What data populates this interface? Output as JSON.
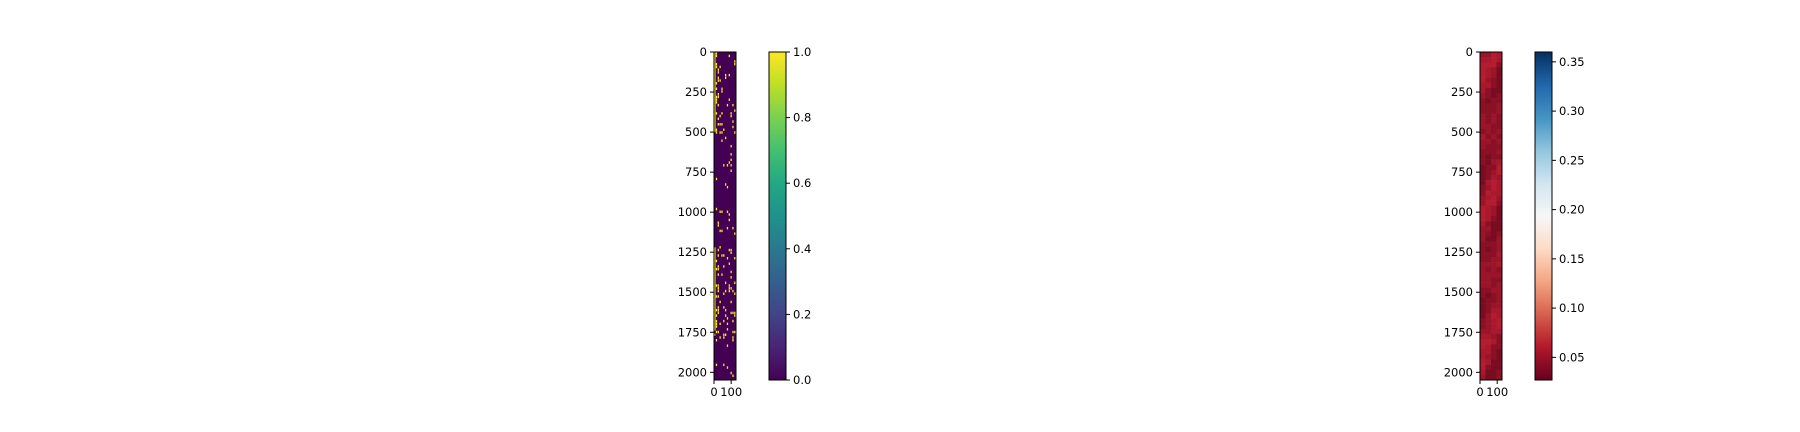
{
  "chart_data": [
    {
      "type": "heatmap",
      "colormap": "viridis",
      "image_rows": 2048,
      "image_cols": 128,
      "ylim": [
        2048,
        0
      ],
      "xlim": [
        0,
        128
      ],
      "yticks": [
        0,
        250,
        500,
        750,
        1000,
        1250,
        1500,
        1750,
        2000
      ],
      "xticks": [
        0,
        100
      ],
      "values_description": "binary mask (0 or 1), mostly 0 with sparse 1s; dense band of 1s in left columns for rows ~0-500 and ~1200-1750",
      "colorbar": {
        "ticks": [
          "0.0",
          "0.2",
          "0.4",
          "0.6",
          "0.8",
          "1.0"
        ],
        "range": [
          0.0,
          1.0
        ]
      }
    },
    {
      "type": "heatmap",
      "colormap": "RdBu",
      "image_rows": 2048,
      "image_cols": 128,
      "ylim": [
        2048,
        0
      ],
      "xlim": [
        0,
        128
      ],
      "yticks": [
        0,
        250,
        500,
        750,
        1000,
        1250,
        1500,
        1750,
        2000
      ],
      "xticks": [
        0,
        100
      ],
      "values_description": "values mostly ~0.03-0.07 (dark red), smooth variation",
      "colorbar": {
        "ticks": [
          "0.05",
          "0.10",
          "0.15",
          "0.20",
          "0.25",
          "0.30",
          "0.35"
        ],
        "range": [
          0.027,
          0.36
        ]
      }
    }
  ]
}
